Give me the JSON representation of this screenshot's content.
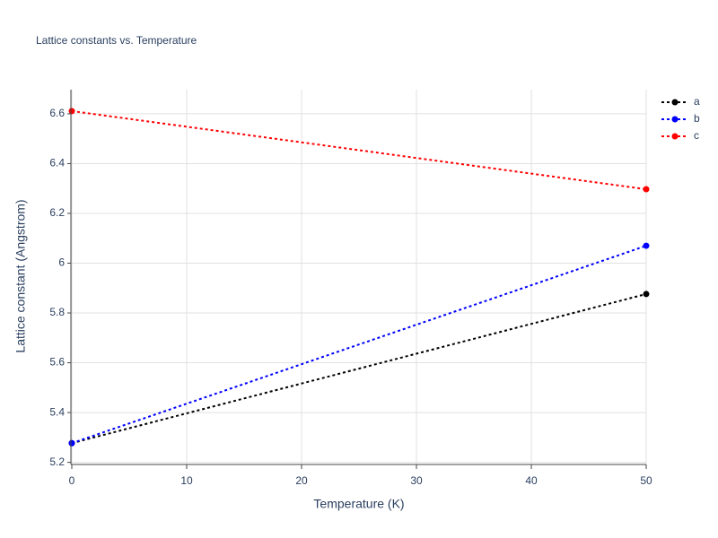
{
  "chart_data": {
    "type": "line",
    "title": "Lattice constants vs. Temperature",
    "x_label": "Temperature (K)",
    "y_label": "Lattice constant (Angstrom)",
    "x": [
      0,
      50
    ],
    "series": [
      {
        "name": "a",
        "color": "#000000",
        "values": [
          5.277,
          5.876
        ]
      },
      {
        "name": "b",
        "color": "#0000ff",
        "values": [
          5.277,
          6.07
        ]
      },
      {
        "name": "c",
        "color": "#ff0000",
        "values": [
          6.611,
          6.297
        ]
      }
    ],
    "xlim": [
      0,
      50
    ],
    "xticks": [
      0,
      10,
      20,
      30,
      40,
      50
    ],
    "ylim": [
      5.195,
      6.697
    ],
    "yticks": [
      5.2,
      5.4,
      5.6,
      5.8,
      6,
      6.2,
      6.4,
      6.6
    ],
    "grid": true,
    "legend": "top-right"
  }
}
